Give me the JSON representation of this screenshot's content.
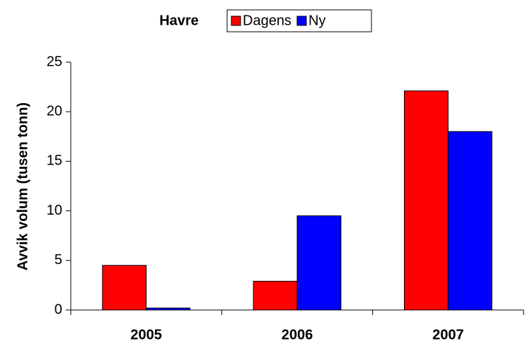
{
  "chart_data": {
    "type": "bar",
    "title": "Havre",
    "y_label": "Avvik volum (tusen tonn)",
    "categories": [
      "2005",
      "2006",
      "2007"
    ],
    "series": [
      {
        "name": "Dagens",
        "color": "#ff0000",
        "values": [
          4.5,
          2.9,
          22.1
        ]
      },
      {
        "name": "Ny",
        "color": "#0000ff",
        "values": [
          0.2,
          9.5,
          18.0
        ]
      }
    ],
    "ylim": [
      0,
      25
    ],
    "yticks": [
      0,
      5,
      10,
      15,
      20,
      25
    ],
    "grid": false,
    "legend": "top"
  }
}
